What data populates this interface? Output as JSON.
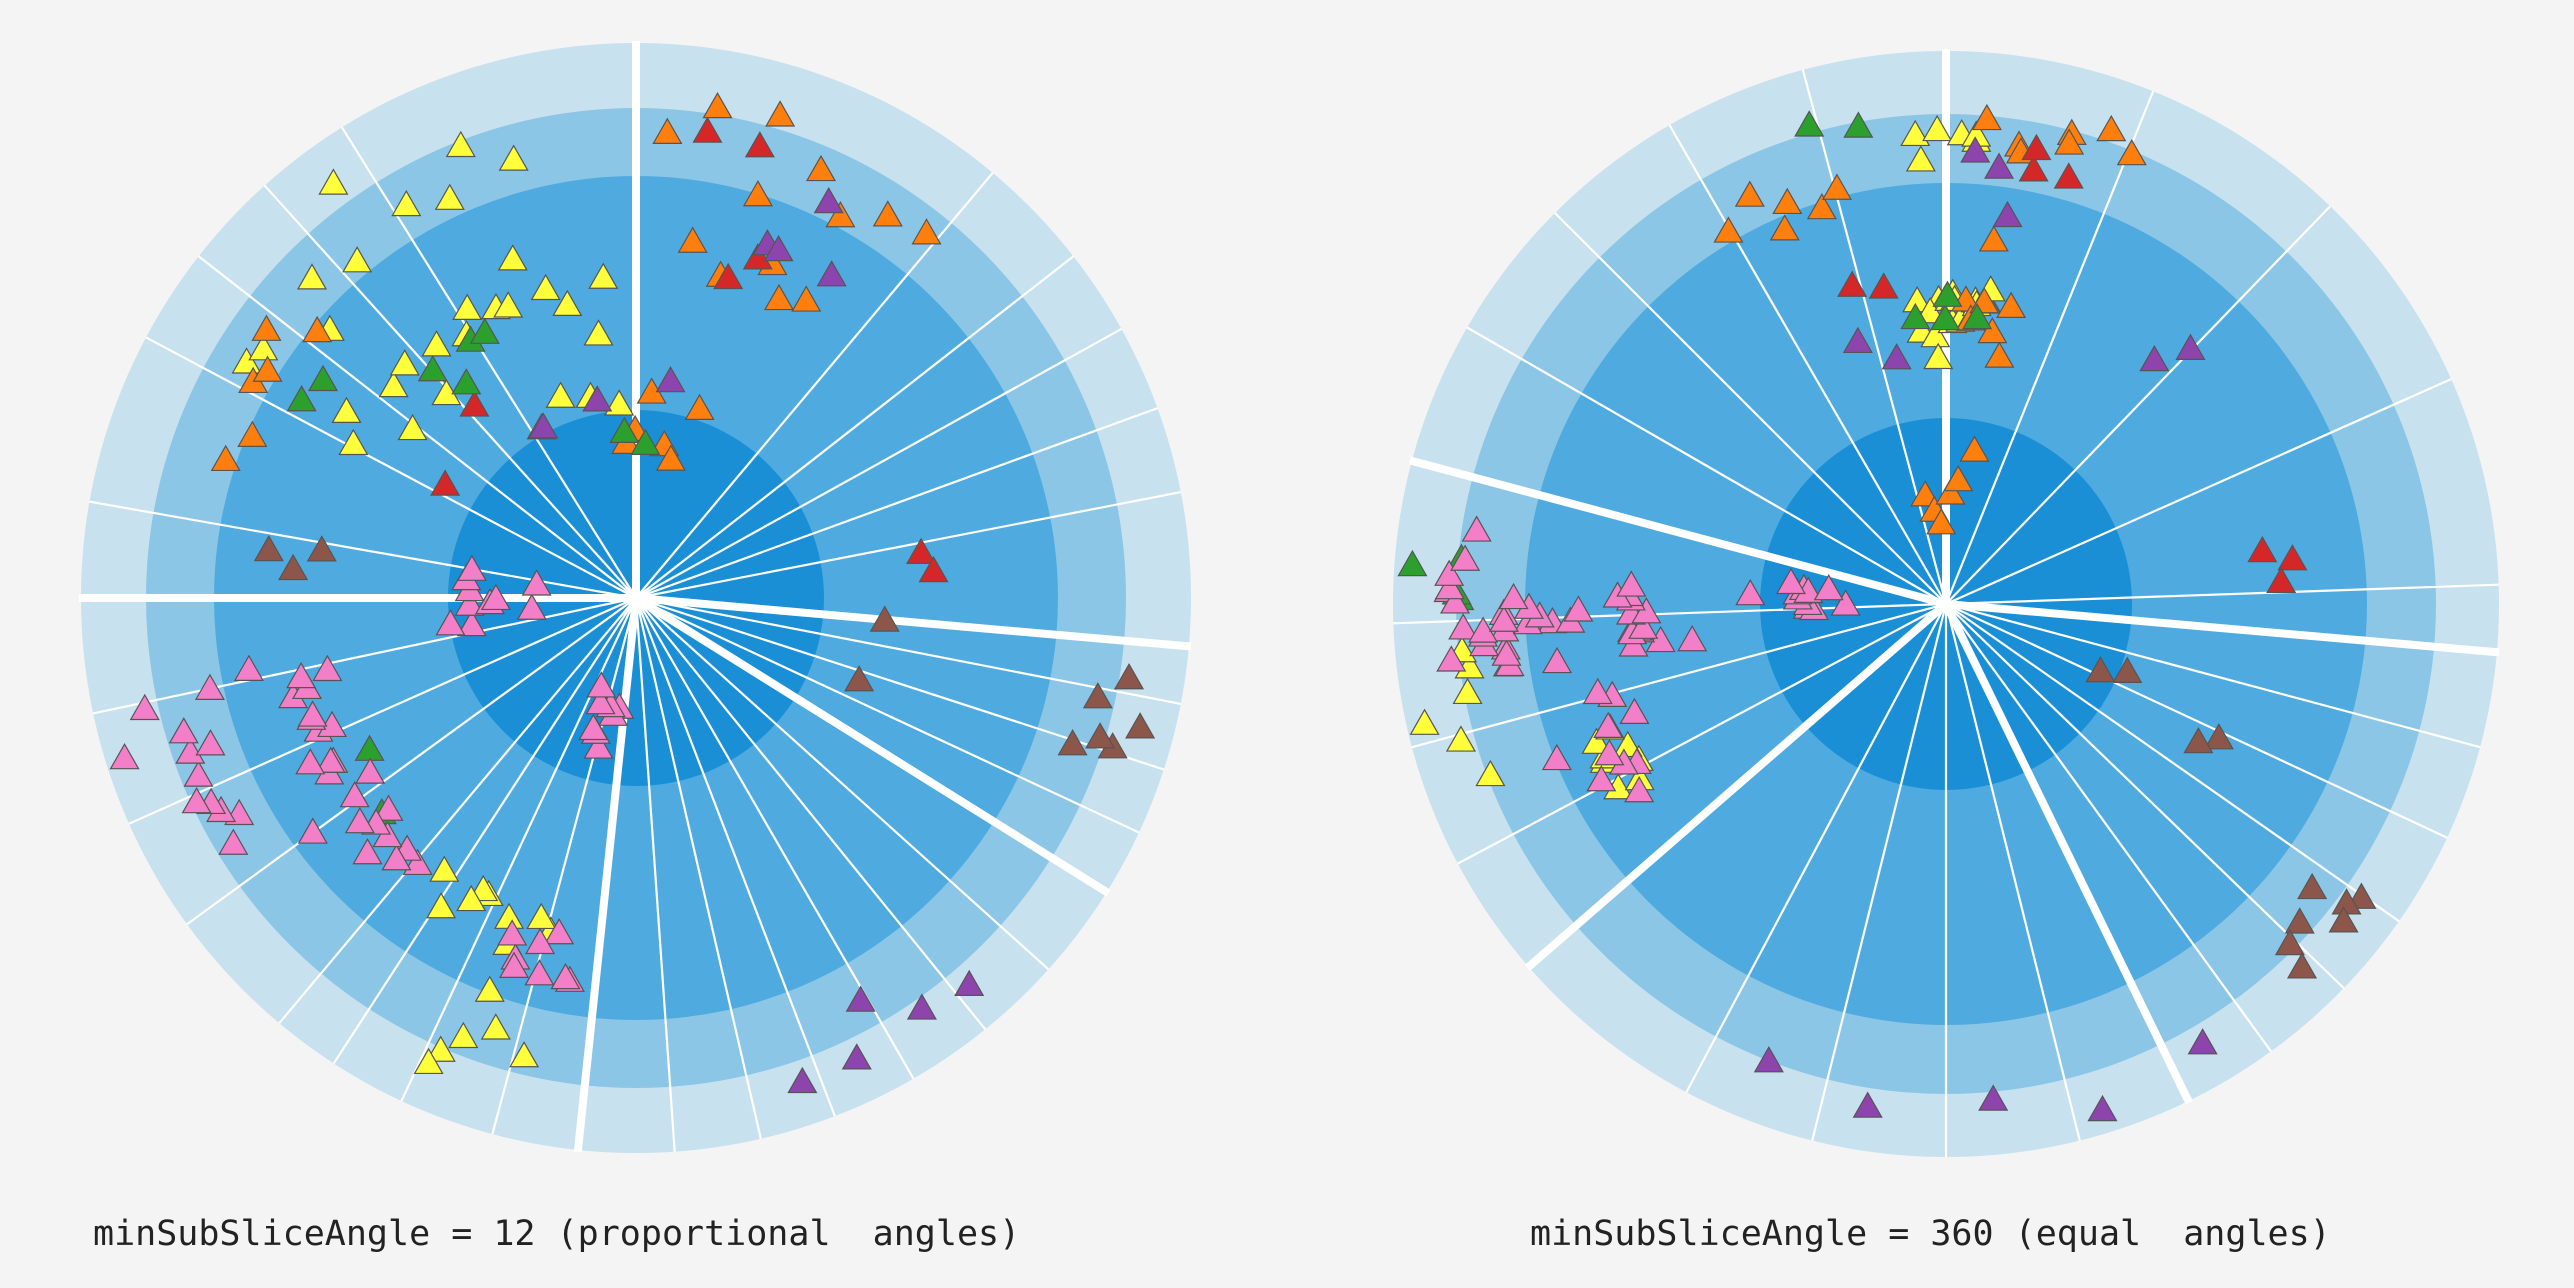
{
  "colors": {
    "background": "#f4f4f4",
    "rings": [
      "#1a8fd6",
      "#4fabdf",
      "#8cc6e6",
      "#c7e1ef"
    ],
    "separator": "#ffffff",
    "marker_stroke": "#555555",
    "categories": {
      "yellow": "#ffff3c",
      "orange": "#ff7f0e",
      "red": "#d62728",
      "green": "#2ca02c",
      "purple": "#8e44ad",
      "pink": "#f27fc7",
      "brown": "#8c564b"
    }
  },
  "marker_shape": "triangle-icon",
  "diagrams": [
    {
      "caption": "minSubSliceAngle = 12 (proportional  angles)",
      "mode": "proportional",
      "markers": {
        "yellow": 45,
        "orange": 27,
        "red": 8,
        "green": 10,
        "purple": 12,
        "pink": 62,
        "brown": 11
      }
    },
    {
      "caption": "minSubSliceAngle = 360 (equal  angles)",
      "mode": "equal",
      "markers": {
        "yellow": 37,
        "orange": 26,
        "red": 8,
        "green": 10,
        "purple": 12,
        "pink": 62,
        "brown": 11
      }
    }
  ]
}
